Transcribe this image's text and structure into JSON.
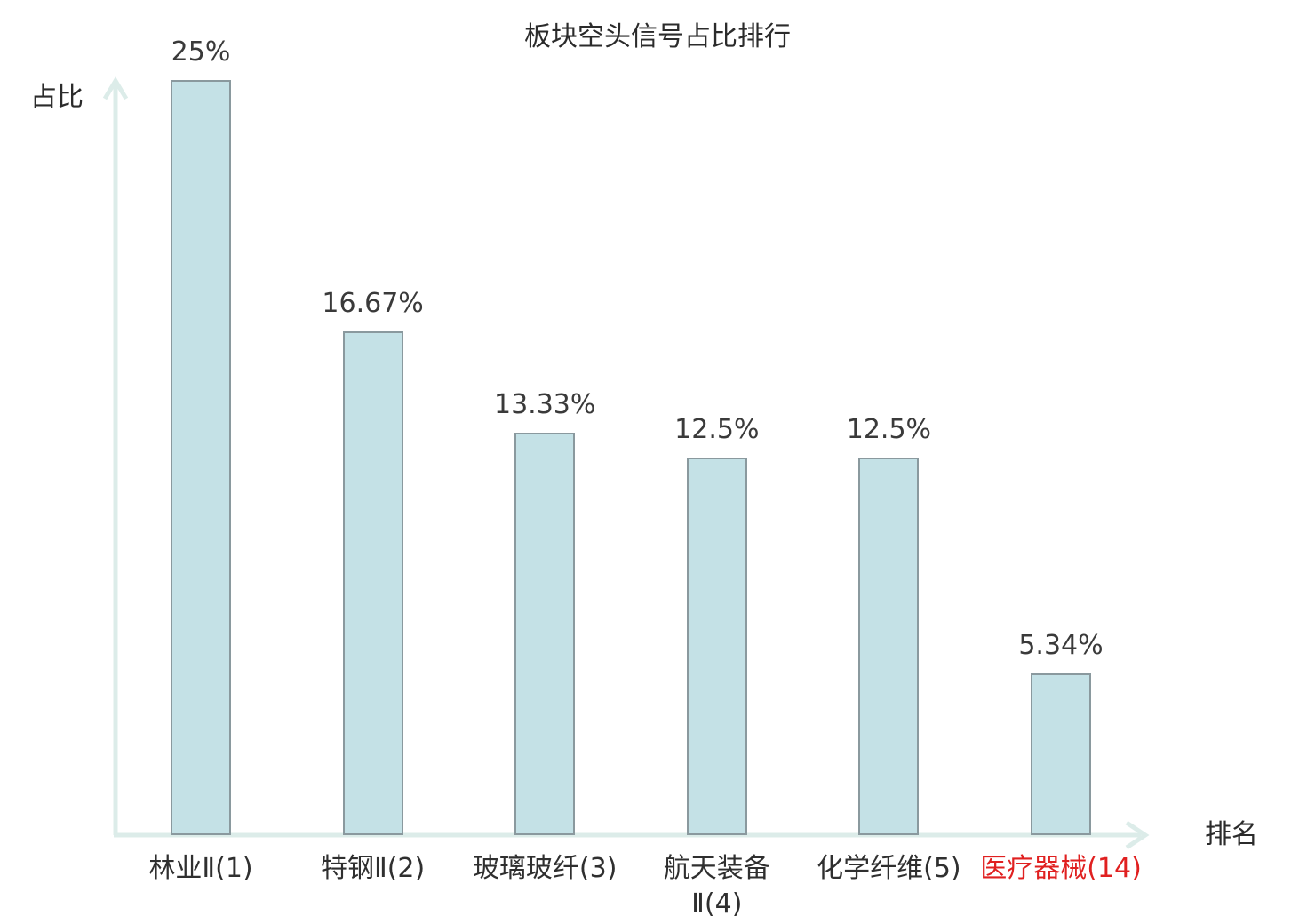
{
  "chart_data": {
    "type": "bar",
    "title": "板块空头信号占比排行",
    "xlabel": "排名",
    "ylabel": "占比",
    "categories": [
      "林业Ⅱ(1)",
      "特钢Ⅱ(2)",
      "玻璃玻纤(3)",
      "航天装备\nⅡ(4)",
      "化学纤维(5)",
      "医疗器械(14)"
    ],
    "values": [
      25,
      16.67,
      13.33,
      12.5,
      12.5,
      5.34
    ],
    "value_labels": [
      "25%",
      "16.67%",
      "13.33%",
      "12.5%",
      "12.5%",
      "5.34%"
    ],
    "highlighted_category_index": 5,
    "ylim": [
      0,
      25
    ],
    "grid": false,
    "legend": null,
    "colors": {
      "bar_fill": "#c4e1e6",
      "bar_border": "#8a999e",
      "axis": "#dcece9",
      "text": "#3a3a3a",
      "highlight_text": "#e02020"
    }
  }
}
